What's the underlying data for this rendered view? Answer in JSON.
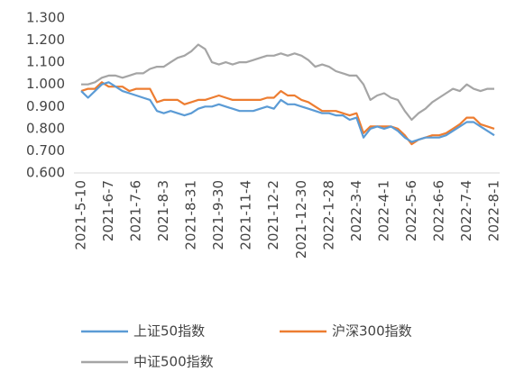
{
  "chart_data": {
    "type": "line",
    "categories": [
      "2021-5-10",
      null,
      null,
      null,
      "2021-6-7",
      null,
      null,
      null,
      "2021-7-6",
      null,
      null,
      null,
      "2021-8-3",
      null,
      null,
      null,
      "2021-8-31",
      null,
      null,
      null,
      "2021-9-30",
      null,
      null,
      null,
      "2021-11-4",
      null,
      null,
      null,
      "2021-12-2",
      null,
      null,
      null,
      "2021-12-30",
      null,
      null,
      null,
      "2022-1-28",
      null,
      null,
      null,
      "2022-3-4",
      null,
      null,
      null,
      "2022-4-1",
      null,
      null,
      null,
      "2022-5-6",
      null,
      null,
      null,
      "2022-6-6",
      null,
      null,
      null,
      "2022-7-4",
      null,
      null,
      null,
      "2022-8-1"
    ],
    "series": [
      {
        "name": "上证50指数",
        "color": "#5b9bd5",
        "values": [
          0.97,
          0.94,
          0.97,
          1.0,
          1.01,
          0.99,
          0.97,
          0.96,
          0.95,
          0.94,
          0.93,
          0.88,
          0.87,
          0.88,
          0.87,
          0.86,
          0.87,
          0.89,
          0.9,
          0.9,
          0.91,
          0.9,
          0.89,
          0.88,
          0.88,
          0.88,
          0.89,
          0.9,
          0.89,
          0.93,
          0.91,
          0.91,
          0.9,
          0.89,
          0.88,
          0.87,
          0.87,
          0.86,
          0.86,
          0.84,
          0.85,
          0.76,
          0.8,
          0.81,
          0.8,
          0.81,
          0.79,
          0.76,
          0.74,
          0.75,
          0.76,
          0.76,
          0.76,
          0.77,
          0.79,
          0.81,
          0.83,
          0.83,
          0.81,
          0.79,
          0.77
        ]
      },
      {
        "name": "沪深300指数",
        "color": "#ed7d31",
        "values": [
          0.97,
          0.98,
          0.98,
          1.01,
          0.99,
          0.99,
          0.99,
          0.97,
          0.98,
          0.98,
          0.98,
          0.92,
          0.93,
          0.93,
          0.93,
          0.91,
          0.92,
          0.93,
          0.93,
          0.94,
          0.95,
          0.94,
          0.93,
          0.93,
          0.93,
          0.93,
          0.93,
          0.94,
          0.94,
          0.97,
          0.95,
          0.95,
          0.93,
          0.92,
          0.9,
          0.88,
          0.88,
          0.88,
          0.87,
          0.86,
          0.87,
          0.78,
          0.81,
          0.81,
          0.81,
          0.81,
          0.8,
          0.77,
          0.73,
          0.75,
          0.76,
          0.77,
          0.77,
          0.78,
          0.8,
          0.82,
          0.85,
          0.85,
          0.82,
          0.81,
          0.8
        ]
      },
      {
        "name": "中证500指数",
        "color": "#a5a5a5",
        "values": [
          1.0,
          1.0,
          1.01,
          1.03,
          1.04,
          1.04,
          1.03,
          1.04,
          1.05,
          1.05,
          1.07,
          1.08,
          1.08,
          1.1,
          1.12,
          1.13,
          1.15,
          1.18,
          1.16,
          1.1,
          1.09,
          1.1,
          1.09,
          1.1,
          1.1,
          1.11,
          1.12,
          1.13,
          1.13,
          1.14,
          1.13,
          1.14,
          1.13,
          1.11,
          1.08,
          1.09,
          1.08,
          1.06,
          1.05,
          1.04,
          1.04,
          1.0,
          0.93,
          0.95,
          0.96,
          0.94,
          0.93,
          0.88,
          0.84,
          0.87,
          0.89,
          0.92,
          0.94,
          0.96,
          0.98,
          0.97,
          1.0,
          0.98,
          0.97,
          0.98,
          0.98
        ]
      }
    ],
    "ylim": [
      0.6,
      1.3
    ],
    "yticks": [
      {
        "value": 0.6,
        "label": "0.600"
      },
      {
        "value": 0.7,
        "label": "0.700"
      },
      {
        "value": 0.8,
        "label": "0.800"
      },
      {
        "value": 0.9,
        "label": "0.900"
      },
      {
        "value": 1.0,
        "label": "1.000"
      },
      {
        "value": 1.1,
        "label": "1.100"
      },
      {
        "value": 1.2,
        "label": "1.200"
      },
      {
        "value": 1.3,
        "label": "1.300"
      }
    ],
    "grid": false,
    "legend": "bottom"
  }
}
